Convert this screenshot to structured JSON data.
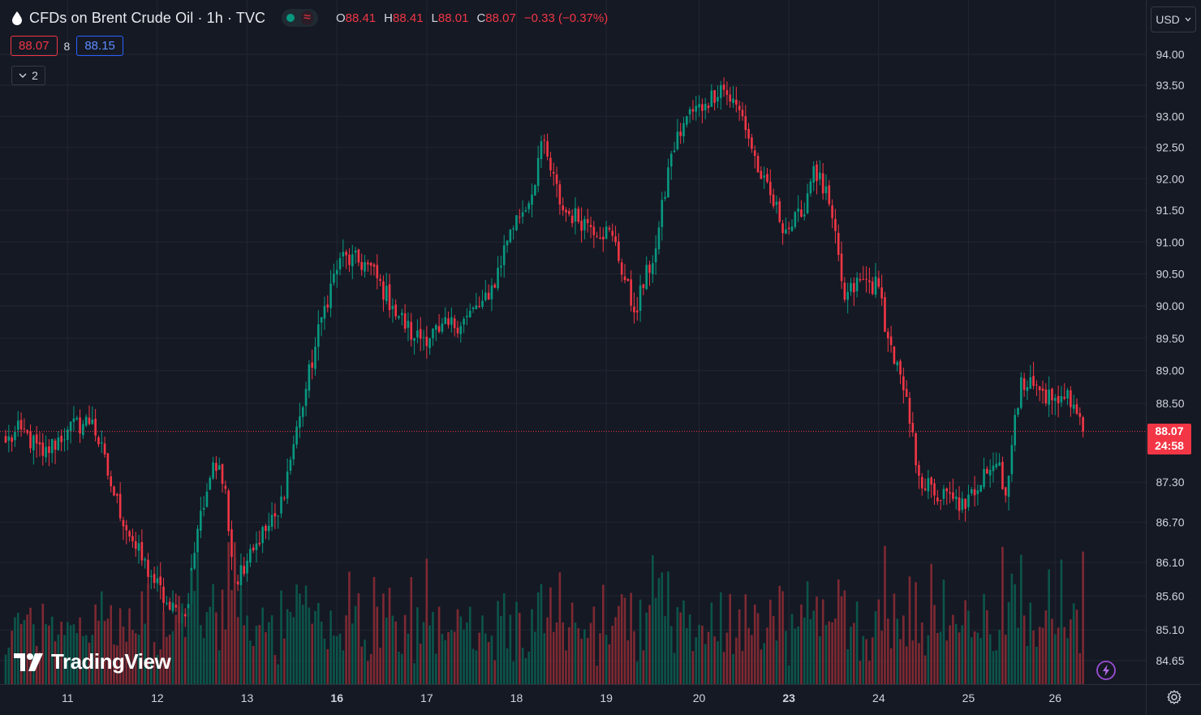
{
  "header": {
    "symbol_title": "CFDs on Brent Crude Oil · 1h · TVC",
    "approx_symbol": "≈",
    "ohlc": {
      "o_label": "O",
      "o_value": "88.41",
      "h_label": "H",
      "h_value": "88.41",
      "l_label": "L",
      "l_value": "88.01",
      "c_label": "C",
      "c_value": "88.07",
      "change": "−0.33 (−0.37%)"
    }
  },
  "quote": {
    "sell": "88.07",
    "spread": "8",
    "buy": "88.15"
  },
  "indicators_toggle": {
    "count": "2"
  },
  "currency": {
    "label": "USD"
  },
  "branding": {
    "logo_text": "TradingView"
  },
  "last_price": {
    "price": "88.07",
    "countdown": "24:58"
  },
  "colors": {
    "up": "#089981",
    "down": "#f23645",
    "background": "#151924",
    "grid": "#232632",
    "text": "#d1d4dc",
    "buy": "#2962ff"
  },
  "icons": {
    "symbol": "drop-icon",
    "indicators": "chevron-down-icon",
    "settings": "gear-icon",
    "alerts": "bolt-icon"
  },
  "chart_data": {
    "type": "candlestick",
    "title": "CFDs on Brent Crude Oil · 1h · TVC",
    "interval": "1h",
    "y_axis_side": "right",
    "y_scale": "log",
    "y_tick_labels": [
      "94.00",
      "93.50",
      "93.00",
      "92.50",
      "92.00",
      "91.50",
      "91.00",
      "90.50",
      "90.00",
      "89.50",
      "89.00",
      "88.50",
      "87.30",
      "86.70",
      "86.10",
      "85.60",
      "85.10",
      "84.65"
    ],
    "x_tick_labels": [
      "11",
      "12",
      "13",
      "16",
      "17",
      "18",
      "19",
      "20",
      "23",
      "24",
      "25",
      "26"
    ],
    "x_tick_bold": [
      "16",
      "23"
    ],
    "last_price": 88.07,
    "grid": true,
    "volume_pane": true,
    "anchors": [
      {
        "i": 0,
        "c": 87.9
      },
      {
        "i": 5,
        "c": 88.1
      },
      {
        "i": 12,
        "c": 87.7
      },
      {
        "i": 20,
        "c": 88.1
      },
      {
        "i": 28,
        "c": 88.25
      },
      {
        "i": 35,
        "c": 87.1
      },
      {
        "i": 42,
        "c": 86.3
      },
      {
        "i": 47,
        "c": 85.9
      },
      {
        "i": 53,
        "c": 85.4
      },
      {
        "i": 58,
        "c": 85.3
      },
      {
        "i": 62,
        "c": 86.6
      },
      {
        "i": 67,
        "c": 87.6
      },
      {
        "i": 71,
        "c": 87.2
      },
      {
        "i": 74,
        "c": 85.8
      },
      {
        "i": 79,
        "c": 86.3
      },
      {
        "i": 88,
        "c": 86.8
      },
      {
        "i": 95,
        "c": 88.3
      },
      {
        "i": 103,
        "c": 90.0
      },
      {
        "i": 108,
        "c": 90.75
      },
      {
        "i": 117,
        "c": 90.65
      },
      {
        "i": 125,
        "c": 90.0
      },
      {
        "i": 132,
        "c": 89.5
      },
      {
        "i": 140,
        "c": 89.6
      },
      {
        "i": 148,
        "c": 89.8
      },
      {
        "i": 156,
        "c": 90.1
      },
      {
        "i": 163,
        "c": 91.2
      },
      {
        "i": 170,
        "c": 91.75
      },
      {
        "i": 173,
        "c": 92.6
      },
      {
        "i": 180,
        "c": 91.5
      },
      {
        "i": 188,
        "c": 91.3
      },
      {
        "i": 196,
        "c": 91.1
      },
      {
        "i": 203,
        "c": 89.9
      },
      {
        "i": 210,
        "c": 90.9
      },
      {
        "i": 215,
        "c": 92.4
      },
      {
        "i": 220,
        "c": 93.0
      },
      {
        "i": 226,
        "c": 93.2
      },
      {
        "i": 231,
        "c": 93.5
      },
      {
        "i": 238,
        "c": 93.0
      },
      {
        "i": 244,
        "c": 92.0
      },
      {
        "i": 252,
        "c": 91.2
      },
      {
        "i": 257,
        "c": 91.4
      },
      {
        "i": 261,
        "c": 92.2
      },
      {
        "i": 266,
        "c": 91.6
      },
      {
        "i": 271,
        "c": 90.1
      },
      {
        "i": 276,
        "c": 90.4
      },
      {
        "i": 282,
        "c": 90.3
      },
      {
        "i": 285,
        "c": 89.5
      },
      {
        "i": 290,
        "c": 88.7
      },
      {
        "i": 295,
        "c": 87.4
      },
      {
        "i": 300,
        "c": 87.1
      },
      {
        "i": 306,
        "c": 87.05
      },
      {
        "i": 310,
        "c": 86.9
      },
      {
        "i": 316,
        "c": 87.5
      },
      {
        "i": 321,
        "c": 87.6
      },
      {
        "i": 323,
        "c": 87.1
      },
      {
        "i": 328,
        "c": 88.9
      },
      {
        "i": 334,
        "c": 88.7
      },
      {
        "i": 340,
        "c": 88.5
      },
      {
        "i": 343,
        "c": 88.7
      },
      {
        "i": 348,
        "c": 88.07
      }
    ]
  }
}
